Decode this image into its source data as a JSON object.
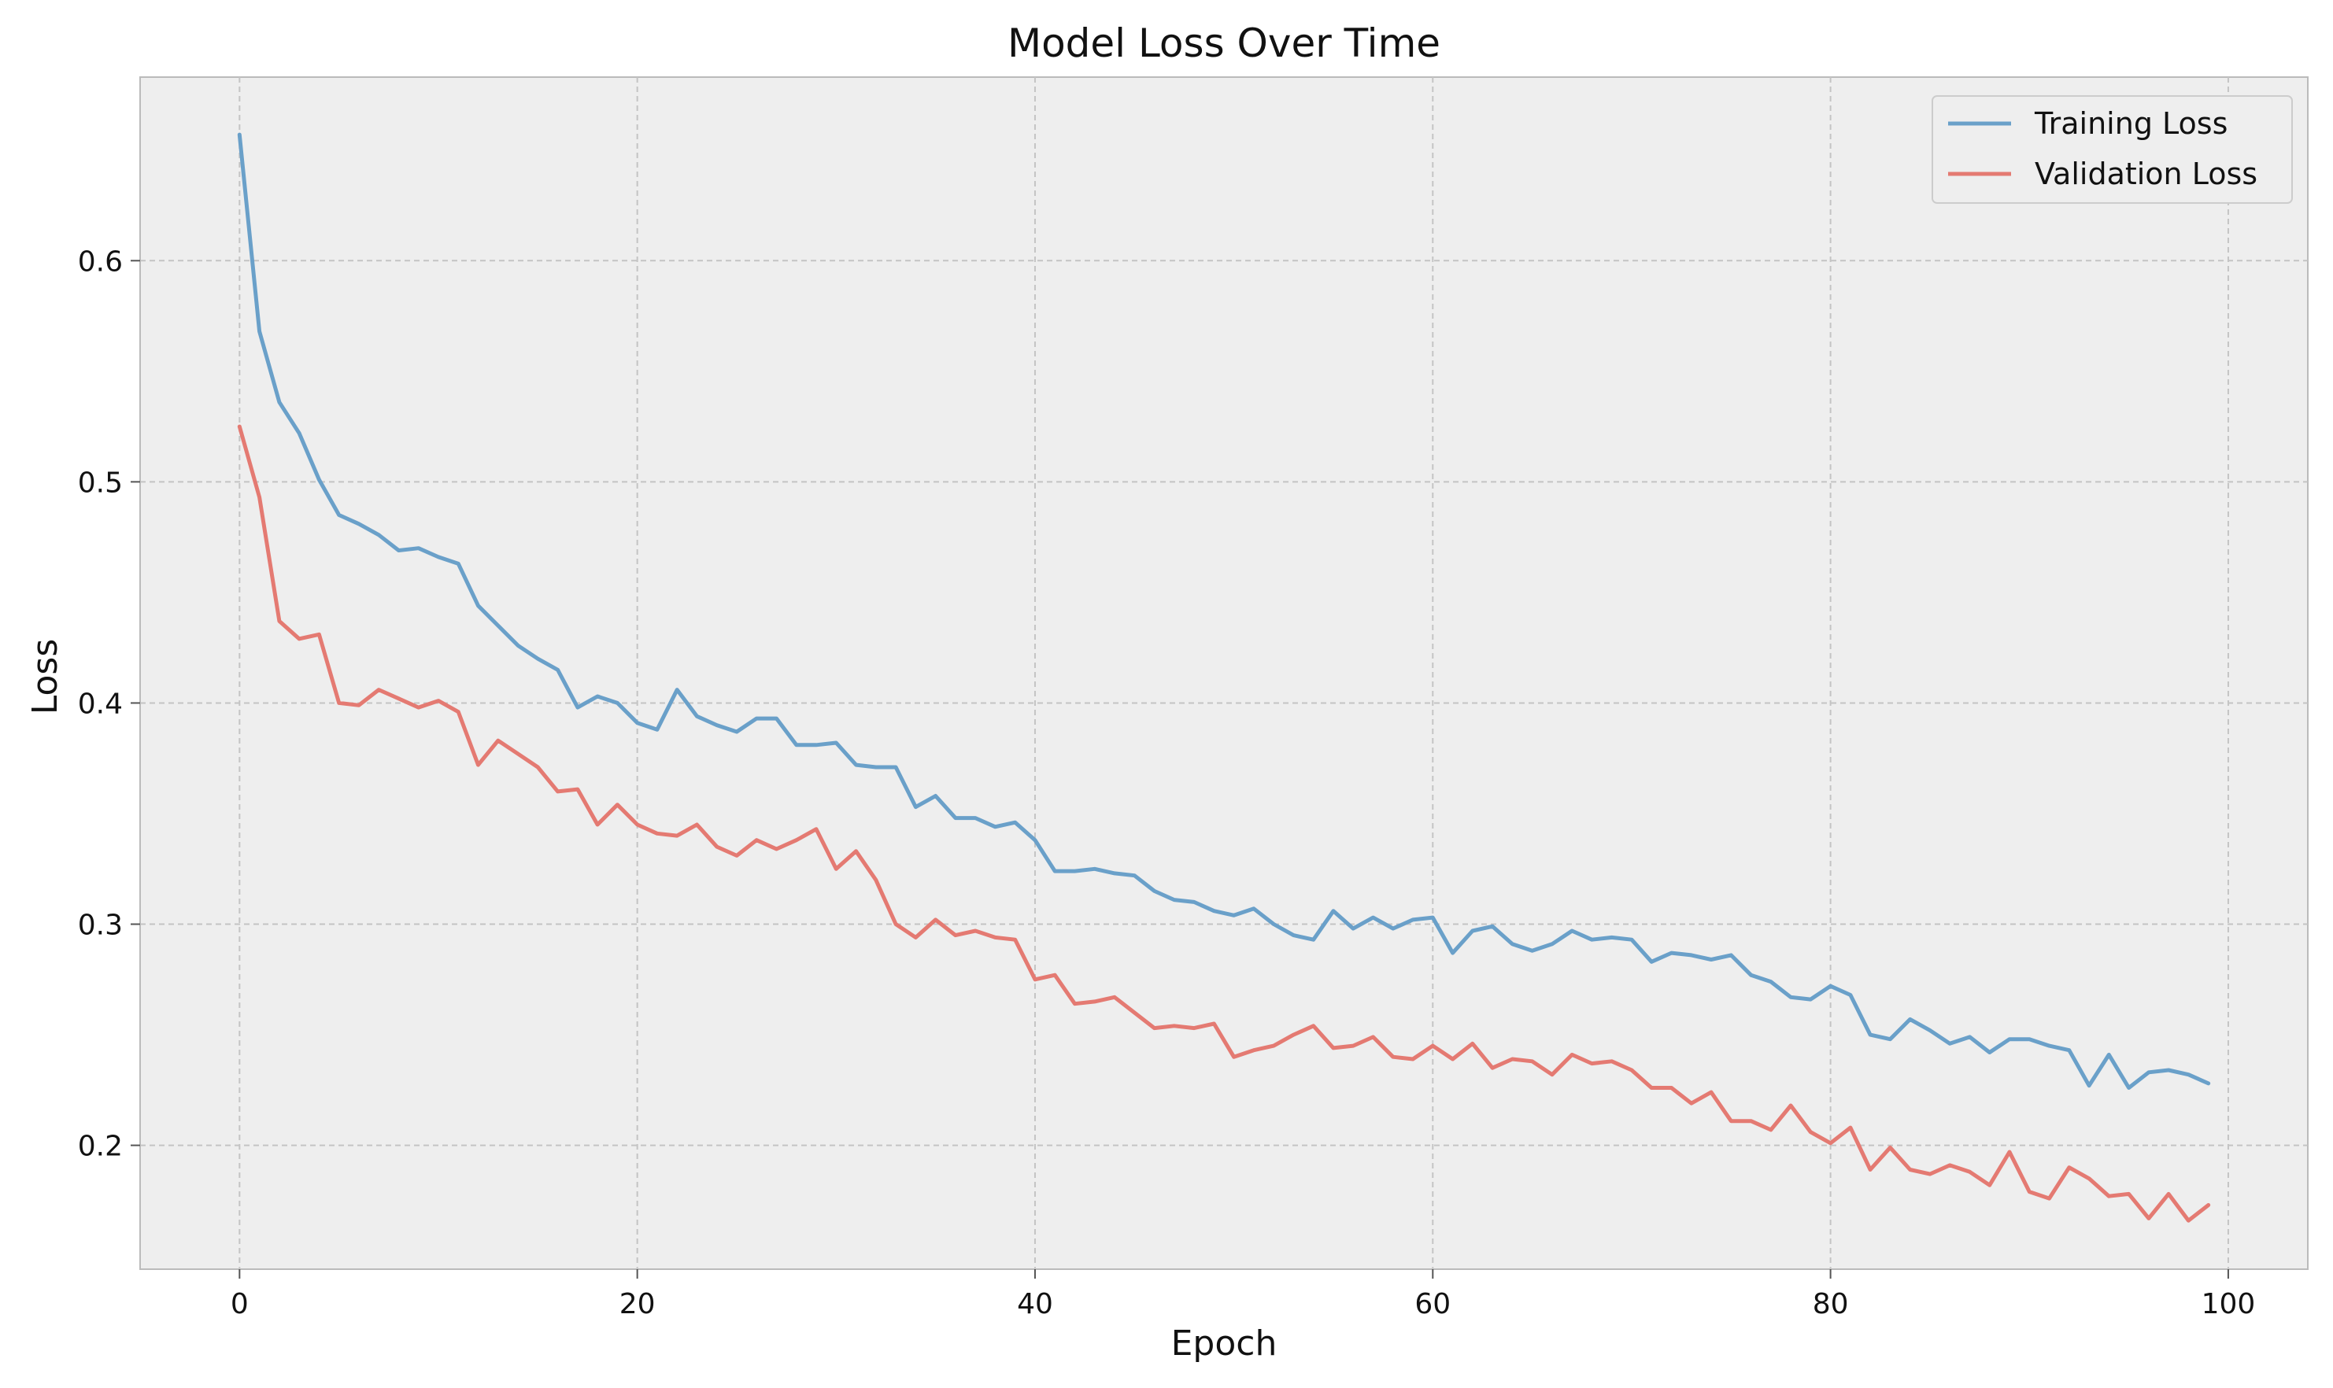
{
  "chart_data": {
    "type": "line",
    "title": "Model Loss Over Time",
    "xlabel": "Epoch",
    "ylabel": "Loss",
    "xlim": [
      -5,
      104
    ],
    "ylim": [
      0.144,
      0.683
    ],
    "xticks": [
      0,
      20,
      40,
      60,
      80,
      100
    ],
    "yticks": [
      0.2,
      0.3,
      0.4,
      0.5,
      0.6
    ],
    "xtick_labels": [
      "0",
      "20",
      "40",
      "60",
      "80",
      "100"
    ],
    "ytick_labels": [
      "0.2",
      "0.3",
      "0.4",
      "0.5",
      "0.6"
    ],
    "grid": true,
    "legend_position": "top-right",
    "series": [
      {
        "name": "Training Loss",
        "color": "#6aa0c9",
        "x_start": 0,
        "values": [
          0.657,
          0.568,
          0.536,
          0.522,
          0.501,
          0.485,
          0.481,
          0.476,
          0.469,
          0.47,
          0.466,
          0.463,
          0.444,
          0.435,
          0.426,
          0.42,
          0.415,
          0.398,
          0.403,
          0.4,
          0.391,
          0.388,
          0.406,
          0.394,
          0.39,
          0.387,
          0.393,
          0.393,
          0.381,
          0.381,
          0.382,
          0.372,
          0.371,
          0.371,
          0.353,
          0.358,
          0.348,
          0.348,
          0.344,
          0.346,
          0.338,
          0.324,
          0.324,
          0.325,
          0.323,
          0.322,
          0.315,
          0.311,
          0.31,
          0.306,
          0.304,
          0.307,
          0.3,
          0.295,
          0.293,
          0.306,
          0.298,
          0.303,
          0.298,
          0.302,
          0.303,
          0.287,
          0.297,
          0.299,
          0.291,
          0.288,
          0.291,
          0.297,
          0.293,
          0.294,
          0.293,
          0.283,
          0.287,
          0.286,
          0.284,
          0.286,
          0.277,
          0.274,
          0.267,
          0.266,
          0.272,
          0.268,
          0.25,
          0.248,
          0.257,
          0.252,
          0.246,
          0.249,
          0.242,
          0.248,
          0.248,
          0.245,
          0.243,
          0.227,
          0.241,
          0.226,
          0.233,
          0.234,
          0.232,
          0.228
        ]
      },
      {
        "name": "Validation Loss",
        "color": "#e47a72",
        "x_start": 0,
        "values": [
          0.525,
          0.493,
          0.437,
          0.429,
          0.431,
          0.4,
          0.399,
          0.406,
          0.402,
          0.398,
          0.401,
          0.396,
          0.372,
          0.383,
          0.377,
          0.371,
          0.36,
          0.361,
          0.345,
          0.354,
          0.345,
          0.341,
          0.34,
          0.345,
          0.335,
          0.331,
          0.338,
          0.334,
          0.338,
          0.343,
          0.325,
          0.333,
          0.32,
          0.3,
          0.294,
          0.302,
          0.295,
          0.297,
          0.294,
          0.293,
          0.275,
          0.277,
          0.264,
          0.265,
          0.267,
          0.26,
          0.253,
          0.254,
          0.253,
          0.255,
          0.24,
          0.243,
          0.245,
          0.25,
          0.254,
          0.244,
          0.245,
          0.249,
          0.24,
          0.239,
          0.245,
          0.239,
          0.246,
          0.235,
          0.239,
          0.238,
          0.232,
          0.241,
          0.237,
          0.238,
          0.234,
          0.226,
          0.226,
          0.219,
          0.224,
          0.211,
          0.211,
          0.207,
          0.218,
          0.206,
          0.201,
          0.208,
          0.189,
          0.199,
          0.189,
          0.187,
          0.191,
          0.188,
          0.182,
          0.197,
          0.179,
          0.176,
          0.19,
          0.185,
          0.177,
          0.178,
          0.167,
          0.178,
          0.166,
          0.173
        ]
      }
    ]
  }
}
